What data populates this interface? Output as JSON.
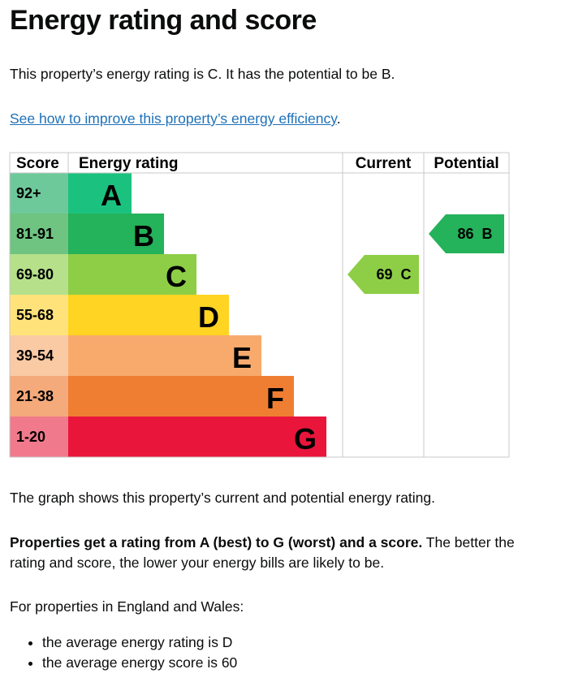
{
  "heading": "Energy rating and score",
  "intro": "This property’s energy rating is C. It has the potential to be B.",
  "improve_link": "See how to improve this property’s energy efficiency",
  "improve_link_suffix": ".",
  "graph_caption": "The graph shows this property’s current and potential energy rating.",
  "rating_bold": "Properties get a rating from A (best) to G (worst) and a score.",
  "rating_rest": " The better the rating and score, the lower your energy bills are likely to be.",
  "england_wales": "For properties in England and Wales:",
  "bullets": [
    "the average energy rating is D",
    "the average energy score is 60"
  ],
  "chart_data": {
    "type": "table",
    "headers": {
      "score": "Score",
      "rating": "Energy rating",
      "current": "Current",
      "potential": "Potential"
    },
    "bands": [
      {
        "score": "92+",
        "letter": "A",
        "color": "#1bc27f",
        "score_color": "#6ec99a"
      },
      {
        "score": "81-91",
        "letter": "B",
        "color": "#24b25a",
        "score_color": "#6ec480"
      },
      {
        "score": "69-80",
        "letter": "C",
        "color": "#8dce46",
        "score_color": "#b6e08a"
      },
      {
        "score": "55-68",
        "letter": "D",
        "color": "#ffd423",
        "score_color": "#ffe37a"
      },
      {
        "score": "39-54",
        "letter": "E",
        "color": "#f8aa6c",
        "score_color": "#facaa4"
      },
      {
        "score": "21-38",
        "letter": "F",
        "color": "#ef7e33",
        "score_color": "#f4aa7a"
      },
      {
        "score": "1-20",
        "letter": "G",
        "color": "#e9153b",
        "score_color": "#f07a8b"
      }
    ],
    "current": {
      "score": 69,
      "letter": "C",
      "label": "69  C",
      "color": "#8dce46"
    },
    "potential": {
      "score": 86,
      "letter": "B",
      "label": "86  B",
      "color": "#24b25a"
    }
  }
}
